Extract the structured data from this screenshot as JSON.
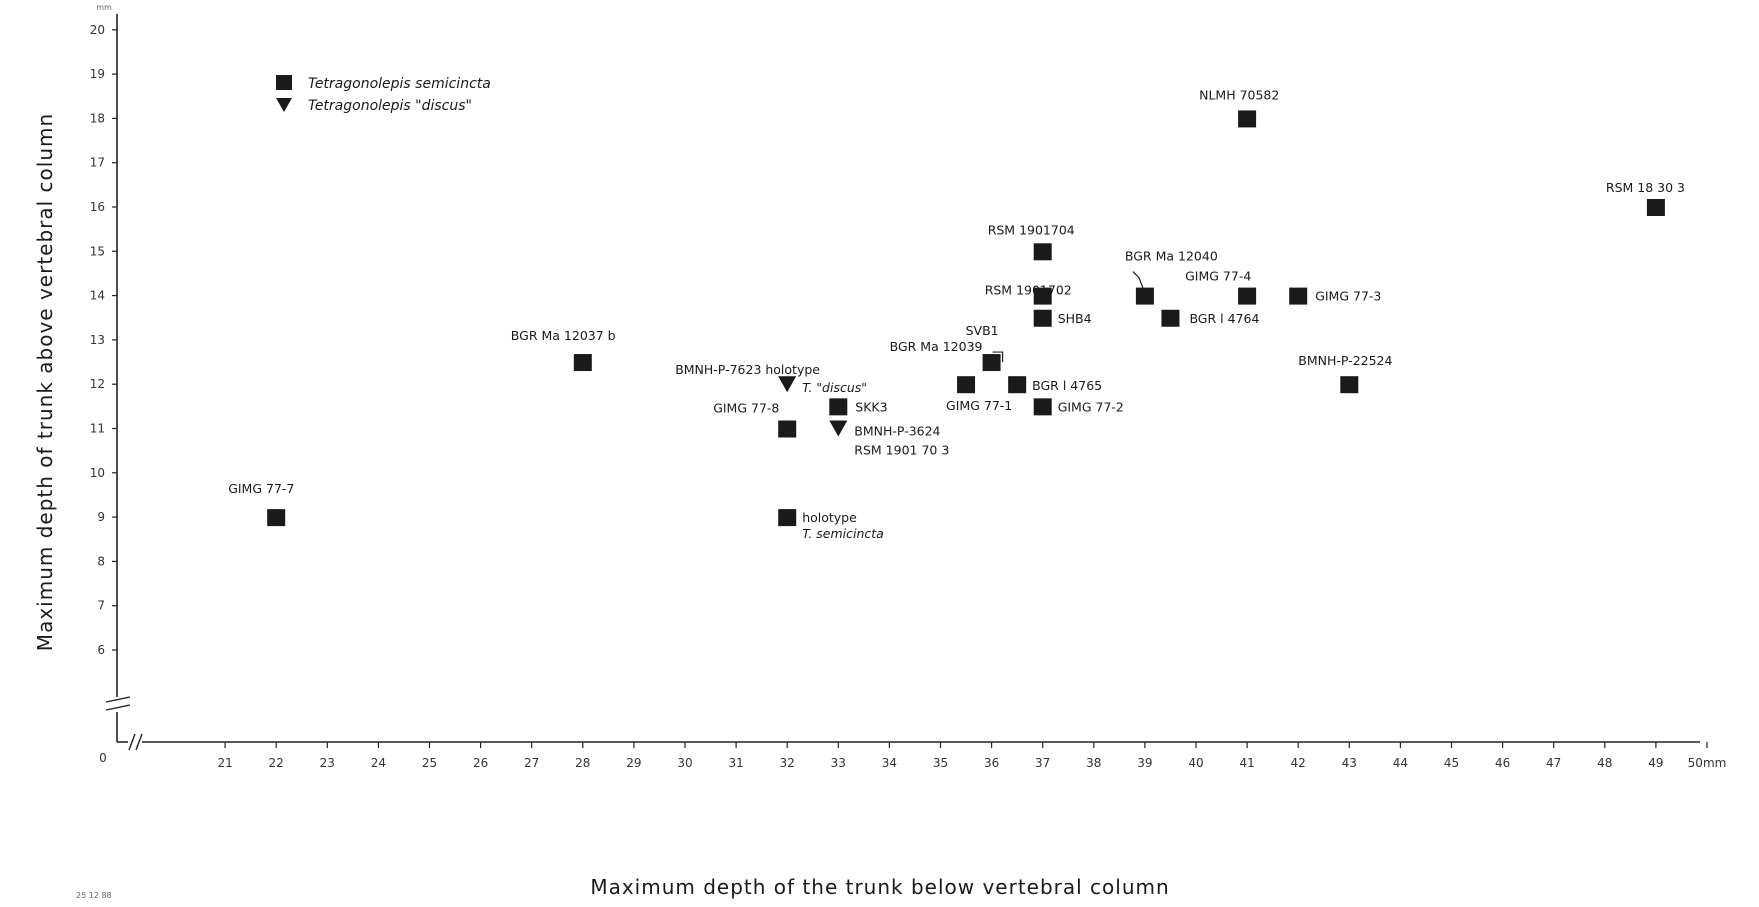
{
  "chart_data": {
    "type": "scatter",
    "xlabel": "Maximum depth of the trunk below vertebral column",
    "ylabel": "Maximum depth of trunk above vertebral column",
    "x_ticks": [
      "21",
      "22",
      "23",
      "24",
      "25",
      "26",
      "27",
      "28",
      "29",
      "30",
      "31",
      "32",
      "33",
      "34",
      "35",
      "36",
      "37",
      "38",
      "39",
      "40",
      "41",
      "42",
      "43",
      "44",
      "45",
      "46",
      "47",
      "48",
      "49",
      "50mm"
    ],
    "y_ticks": [
      "6",
      "7",
      "8",
      "9",
      "10",
      "11",
      "12",
      "13",
      "14",
      "15",
      "16",
      "17",
      "18",
      "19",
      "20"
    ],
    "x_origin_label": "0",
    "y_top_unit": "mm",
    "xlim": [
      20,
      50
    ],
    "ylim": [
      5,
      20
    ],
    "axis_breaks": true,
    "grid": false,
    "legend_position": "top-left",
    "series": [
      {
        "name": "Tetragonolepis semicincta",
        "marker": "square",
        "color": "#1a1a1a",
        "points": [
          {
            "x": 22,
            "y": 9,
            "label": "GIMG 77-7"
          },
          {
            "x": 28,
            "y": 12.5,
            "label": "BGR Ma 12037 b"
          },
          {
            "x": 32,
            "y": 11,
            "label": "GIMG 77-8"
          },
          {
            "x": 32,
            "y": 9,
            "label": "holotype",
            "label2": "T. semicincta"
          },
          {
            "x": 33,
            "y": 11.5,
            "label": "SKK3"
          },
          {
            "x": 35.5,
            "y": 12,
            "label": "GIMG 77-1"
          },
          {
            "x": 36,
            "y": 12.5,
            "label": "SVB1",
            "label2": "BGR Ma 12039"
          },
          {
            "x": 36.5,
            "y": 12,
            "label": "BGR l 4765"
          },
          {
            "x": 37,
            "y": 11.5,
            "label": "GIMG 77-2"
          },
          {
            "x": 37,
            "y": 13.5,
            "label": "SHB4"
          },
          {
            "x": 37,
            "y": 14,
            "label": "RSM 1901702"
          },
          {
            "x": 37,
            "y": 15,
            "label": "RSM 1901704"
          },
          {
            "x": 39,
            "y": 14,
            "label": "BGR Ma 12040"
          },
          {
            "x": 39.5,
            "y": 13.5,
            "label": "BGR l 4764"
          },
          {
            "x": 41,
            "y": 14,
            "label": "GIMG 77-4"
          },
          {
            "x": 41,
            "y": 18,
            "label": "NLMH 70582"
          },
          {
            "x": 42,
            "y": 14,
            "label": "GIMG 77-3"
          },
          {
            "x": 43,
            "y": 12,
            "label": "BMNH-P-22524"
          },
          {
            "x": 49,
            "y": 16,
            "label": "RSM 18 30 3"
          }
        ]
      },
      {
        "name": "Tetragonolepis \"discus\"",
        "marker": "triangle-down",
        "color": "#1a1a1a",
        "points": [
          {
            "x": 32,
            "y": 12,
            "label": "BMNH-P-7623 holotype",
            "label2": "T. \"discus\""
          },
          {
            "x": 33,
            "y": 11,
            "label": "BMNH-P-3624",
            "label2": "RSM 1901 70 3"
          }
        ]
      }
    ]
  },
  "legend": [
    {
      "label": "Tetragonolepis semicincta",
      "marker": "square"
    },
    {
      "label": "Tetragonolepis \"discus\"",
      "marker": "triangle-down"
    }
  ],
  "corner_note": "25 12 88"
}
